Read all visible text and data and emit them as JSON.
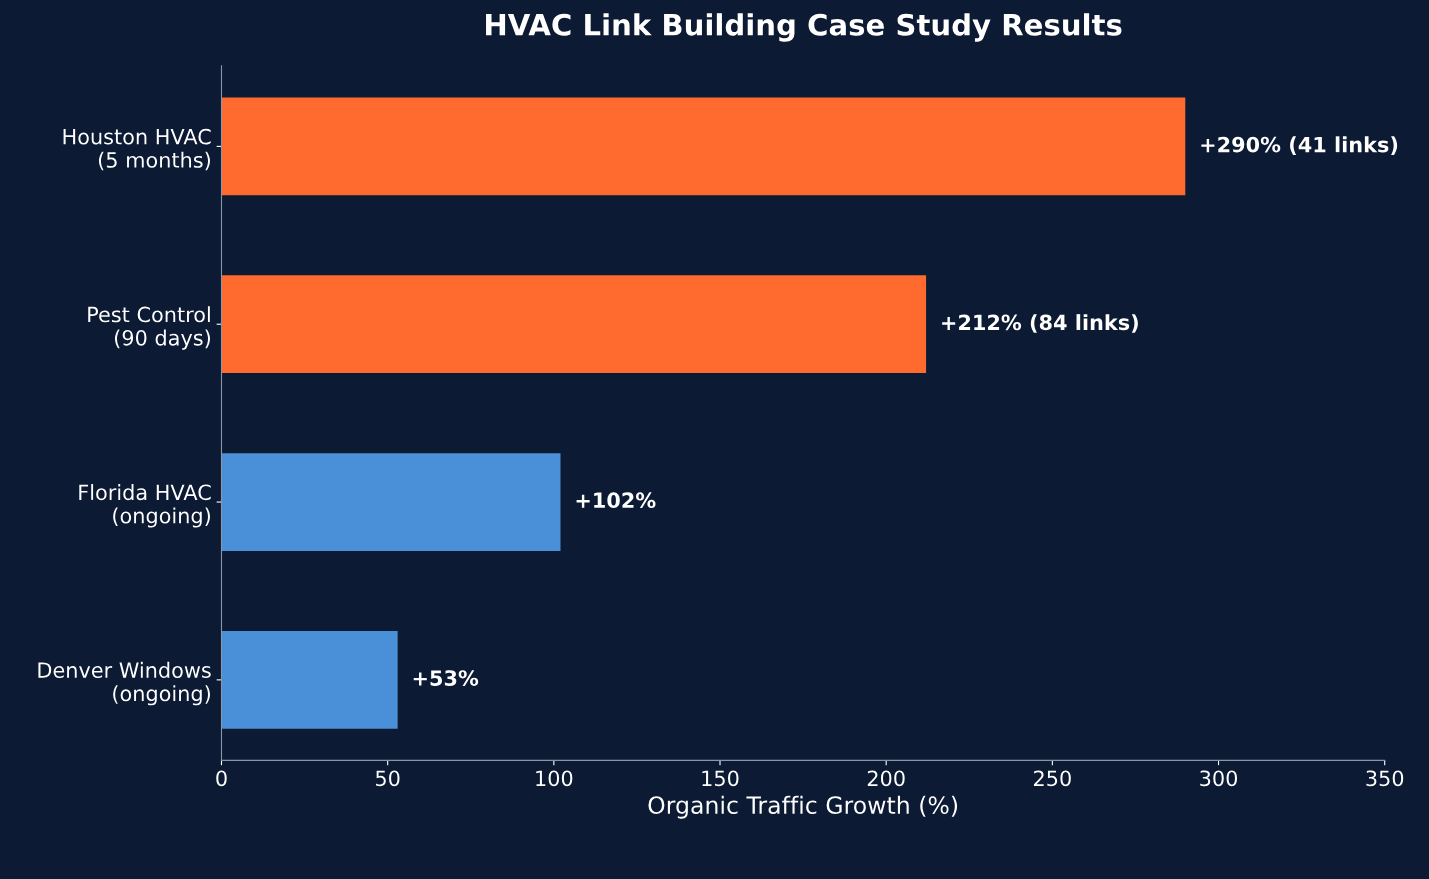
{
  "chart_data": {
    "type": "bar",
    "orientation": "horizontal",
    "title": "HVAC Link Building Case Study Results",
    "xlabel": "Organic Traffic Growth (%)",
    "categories": [
      "Houston HVAC\n(5 months)",
      "Pest Control\n(90 days)",
      "Florida HVAC\n(ongoing)",
      "Denver Windows\n(ongoing)"
    ],
    "values": [
      290,
      212,
      102,
      53
    ],
    "colors": [
      "#ff6b2f",
      "#ff6b2f",
      "#4a90d9",
      "#4a90d9"
    ],
    "value_labels": [
      "+290% (41 links)",
      "+212% (84 links)",
      "+102%",
      "+53%"
    ],
    "xlim": [
      0,
      350
    ],
    "xticks": [
      0,
      50,
      100,
      150,
      200,
      250,
      300,
      350
    ],
    "grid": false,
    "legend": false
  }
}
